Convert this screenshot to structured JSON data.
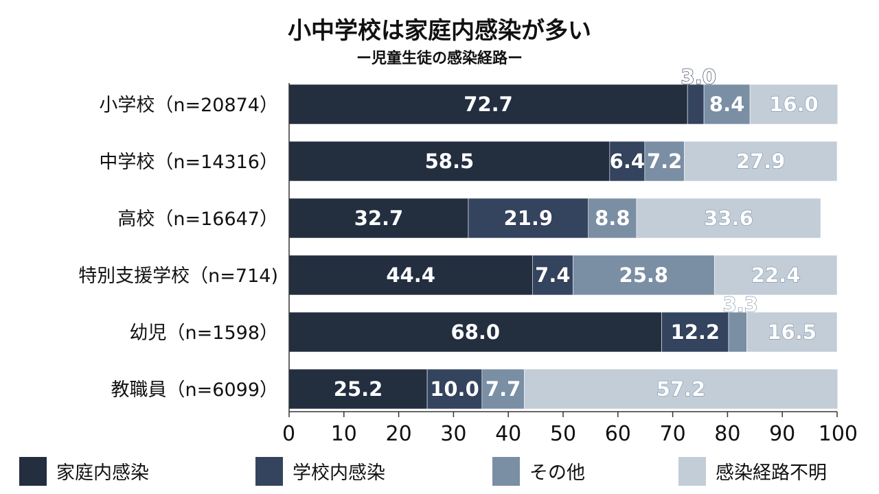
{
  "chart_data": {
    "type": "bar",
    "orientation": "horizontal",
    "stacked": true,
    "title": "小中学校は家庭内感染が多い",
    "subtitle": "ー児童生徒の感染経路ー",
    "categories": [
      "小学校（n=20874）",
      "中学校（n=14316）",
      "高校（n=16647）",
      "特別支援学校（n=714)",
      "幼児（n=1598）",
      "教職員（n=6099）"
    ],
    "series": [
      {
        "name": "家庭内感染",
        "color": "#232e3f",
        "values": [
          72.7,
          58.5,
          32.7,
          44.4,
          68.0,
          25.2
        ]
      },
      {
        "name": "学校内感染",
        "color": "#34445e",
        "values": [
          3.0,
          6.4,
          21.9,
          7.4,
          12.2,
          10.0
        ]
      },
      {
        "name": "その他",
        "color": "#7a8ea4",
        "values": [
          8.4,
          7.2,
          8.8,
          25.8,
          3.3,
          7.7
        ]
      },
      {
        "name": "感染経路不明",
        "color": "#c2cdd8",
        "values": [
          16.0,
          27.9,
          33.6,
          22.4,
          16.5,
          57.2
        ]
      }
    ],
    "value_labels": [
      [
        "72.7",
        "3.0",
        "8.4",
        "16.0"
      ],
      [
        "58.5",
        "6.4",
        "7.2",
        "27.9"
      ],
      [
        "32.7",
        "21.9",
        "8.8",
        "33.6"
      ],
      [
        "44.4",
        "7.4",
        "25.8",
        "22.4"
      ],
      [
        "68.0",
        "12.2",
        "3.3",
        "16.5"
      ],
      [
        "25.2",
        "10.0",
        "7.7",
        "57.2"
      ]
    ],
    "xlim": [
      0,
      100
    ],
    "xticks": [
      "0",
      "10",
      "20",
      "30",
      "40",
      "50",
      "60",
      "70",
      "80",
      "90",
      "100"
    ],
    "legend_position": "bottom",
    "grid": false
  }
}
